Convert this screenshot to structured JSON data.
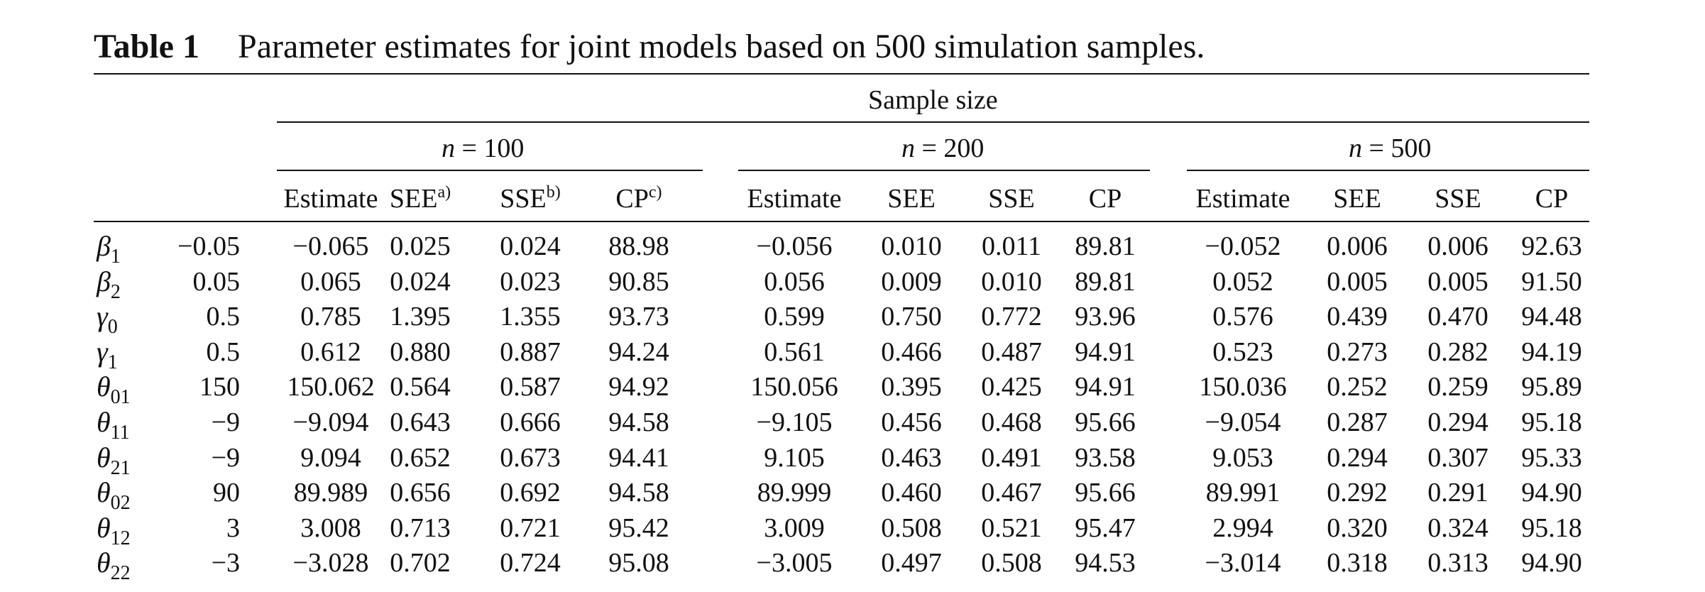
{
  "caption": {
    "label": "Table 1",
    "text": "Parameter estimates for joint models based on 500 simulation samples."
  },
  "header": {
    "spanner": "Sample size",
    "groups": [
      {
        "label": "n = 100"
      },
      {
        "label": "n = 200"
      },
      {
        "label": "n = 500"
      }
    ],
    "columns": [
      {
        "text": "Estimate",
        "sup": ""
      },
      {
        "text": "SEE",
        "sup": "a)"
      },
      {
        "text": "SSE",
        "sup": "b)"
      },
      {
        "text": "CP",
        "sup": "c)"
      },
      {
        "text": "Estimate",
        "sup": ""
      },
      {
        "text": "SEE",
        "sup": ""
      },
      {
        "text": "SSE",
        "sup": ""
      },
      {
        "text": "CP",
        "sup": ""
      },
      {
        "text": "Estimate",
        "sup": ""
      },
      {
        "text": "SEE",
        "sup": ""
      },
      {
        "text": "SSE",
        "sup": ""
      },
      {
        "text": "CP",
        "sup": ""
      }
    ]
  },
  "rows": [
    {
      "param": "β",
      "sub": "1",
      "true": "−0.05",
      "cells": [
        "−0.065",
        "0.025",
        "0.024",
        "88.98",
        "−0.056",
        "0.010",
        "0.011",
        "89.81",
        "−0.052",
        "0.006",
        "0.006",
        "92.63"
      ]
    },
    {
      "param": "β",
      "sub": "2",
      "true": "0.05",
      "cells": [
        "0.065",
        "0.024",
        "0.023",
        "90.85",
        "0.056",
        "0.009",
        "0.010",
        "89.81",
        "0.052",
        "0.005",
        "0.005",
        "91.50"
      ]
    },
    {
      "param": "γ",
      "sub": "0",
      "true": "0.5",
      "cells": [
        "0.785",
        "1.395",
        "1.355",
        "93.73",
        "0.599",
        "0.750",
        "0.772",
        "93.96",
        "0.576",
        "0.439",
        "0.470",
        "94.48"
      ]
    },
    {
      "param": "γ",
      "sub": "1",
      "true": "0.5",
      "cells": [
        "0.612",
        "0.880",
        "0.887",
        "94.24",
        "0.561",
        "0.466",
        "0.487",
        "94.91",
        "0.523",
        "0.273",
        "0.282",
        "94.19"
      ]
    },
    {
      "param": "θ",
      "sub": "01",
      "true": "150",
      "cells": [
        "150.062",
        "0.564",
        "0.587",
        "94.92",
        "150.056",
        "0.395",
        "0.425",
        "94.91",
        "150.036",
        "0.252",
        "0.259",
        "95.89"
      ]
    },
    {
      "param": "θ",
      "sub": "11",
      "true": "−9",
      "cells": [
        "−9.094",
        "0.643",
        "0.666",
        "94.58",
        "−9.105",
        "0.456",
        "0.468",
        "95.66",
        "−9.054",
        "0.287",
        "0.294",
        "95.18"
      ]
    },
    {
      "param": "θ",
      "sub": "21",
      "true": "−9",
      "cells": [
        "9.094",
        "0.652",
        "0.673",
        "94.41",
        "9.105",
        "0.463",
        "0.491",
        "93.58",
        "9.053",
        "0.294",
        "0.307",
        "95.33"
      ]
    },
    {
      "param": "θ",
      "sub": "02",
      "true": "90",
      "cells": [
        "89.989",
        "0.656",
        "0.692",
        "94.58",
        "89.999",
        "0.460",
        "0.467",
        "95.66",
        "89.991",
        "0.292",
        "0.291",
        "94.90"
      ]
    },
    {
      "param": "θ",
      "sub": "12",
      "true": "3",
      "cells": [
        "3.008",
        "0.713",
        "0.721",
        "95.42",
        "3.009",
        "0.508",
        "0.521",
        "95.47",
        "2.994",
        "0.320",
        "0.324",
        "95.18"
      ]
    },
    {
      "param": "θ",
      "sub": "22",
      "true": "−3",
      "cells": [
        "−3.028",
        "0.702",
        "0.724",
        "95.08",
        "−3.005",
        "0.497",
        "0.508",
        "94.53",
        "−3.014",
        "0.318",
        "0.313",
        "94.90"
      ]
    }
  ]
}
